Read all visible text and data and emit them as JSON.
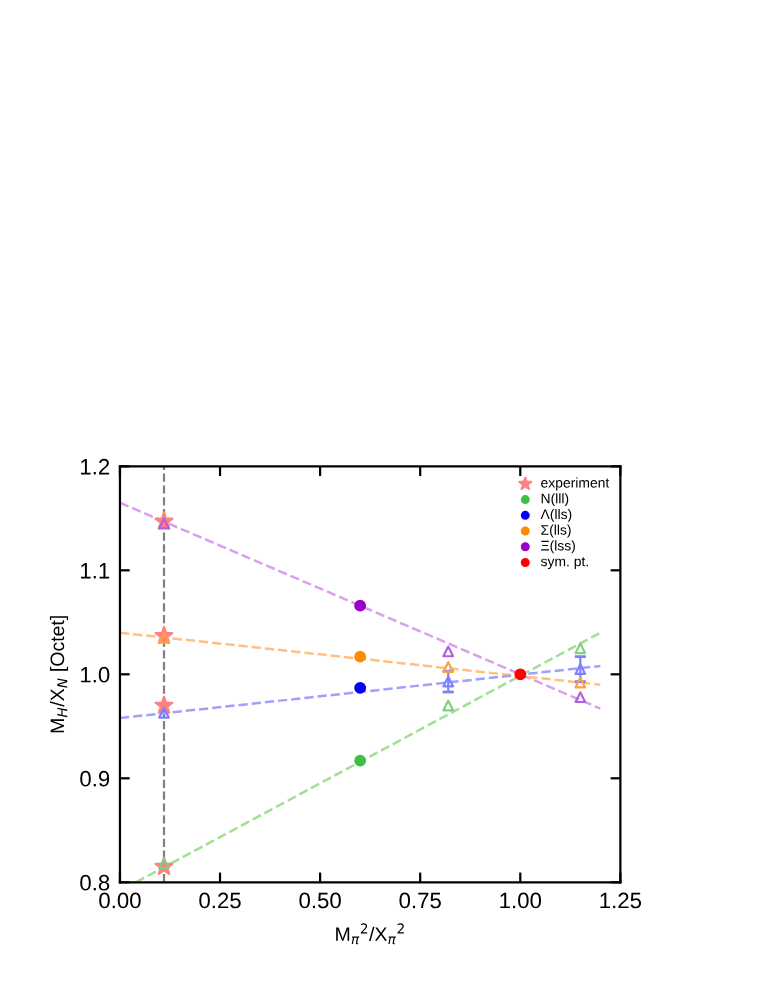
{
  "chart_data": {
    "type": "scatter",
    "xlabel": "M$_{π}$$^{2}$/X$_{π}$$^{2}$",
    "ylabel": "M$_{H}$/X$_{N}$ [Octet]",
    "xlim": [
      0,
      1.25
    ],
    "xticks": [
      {
        "value": 0,
        "label": "0.00"
      },
      0.25,
      {
        "value": 0.5,
        "label": "0.50"
      },
      0.75,
      {
        "value": 1,
        "label": "1.00"
      },
      1.25
    ],
    "ylim": [
      0.8,
      1.2
    ],
    "yticks": [
      0.8,
      0.9,
      {
        "value": 1,
        "label": "1.0"
      },
      1.1,
      1.2
    ],
    "grid": false,
    "legend": "top right",
    "ref_lines": [
      {
        "axis": "x",
        "value": 0.11,
        "color": "#808080",
        "line_style": "dashed"
      }
    ],
    "series": [
      {
        "type": "line",
        "color": "#d9a0f0",
        "line_style": "dashed",
        "marker": "none",
        "x": [
          0,
          1.2
        ],
        "values": [
          1.165,
          0.967
        ]
      },
      {
        "type": "line",
        "color": "#ffc080",
        "line_style": "dashed",
        "marker": "none",
        "x": [
          0,
          1.2
        ],
        "values": [
          1.04,
          0.99
        ]
      },
      {
        "type": "line",
        "color": "#a0a0ff",
        "line_style": "dashed",
        "marker": "none",
        "x": [
          0,
          1.2
        ],
        "values": [
          0.958,
          1.008
        ]
      },
      {
        "type": "line",
        "color": "#a0e090",
        "line_style": "dashed",
        "marker": "none",
        "x": [
          0.04,
          1.2
        ],
        "values": [
          0.8,
          1.04
        ]
      },
      {
        "name": "experiment",
        "color": "#ff8080",
        "marker": "star",
        "x": [
          0.11,
          0.11,
          0.11,
          0.11
        ],
        "values": [
          1.147,
          1.037,
          0.97,
          0.815
        ]
      },
      {
        "name": "N(lll)",
        "color": "#40c040",
        "marker": "circle",
        "x": [
          0.6
        ],
        "values": [
          0.917
        ]
      },
      {
        "name": "Λ(lls)",
        "color": "#0000ff",
        "marker": "circle",
        "x": [
          0.6
        ],
        "values": [
          0.987
        ]
      },
      {
        "name": "Σ(lls)",
        "color": "#ff8c00",
        "marker": "circle",
        "x": [
          0.6
        ],
        "values": [
          1.017
        ]
      },
      {
        "name": "Ξ(lss)",
        "color": "#9900cc",
        "marker": "circle",
        "x": [
          0.6
        ],
        "values": [
          1.066
        ]
      },
      {
        "name": "sym. pt.",
        "color": "#ff0000",
        "marker": "circle",
        "x": [
          1.0
        ],
        "values": [
          1.0
        ]
      },
      {
        "color": "#80d080",
        "marker": "triangle",
        "x": [
          0.11,
          0.82,
          1.15
        ],
        "values": [
          0.818,
          0.97,
          1.025
        ]
      },
      {
        "color": "#8080ff",
        "marker": "triangle",
        "x": [
          0.11,
          0.82,
          1.15
        ],
        "values": [
          0.963,
          0.993,
          1.005
        ],
        "errors": [
          null,
          0.01,
          0.012
        ]
      },
      {
        "color": "#ffa040",
        "marker": "triangle",
        "x": [
          0.11,
          0.82,
          1.15
        ],
        "values": [
          1.035,
          1.007,
          0.992
        ]
      },
      {
        "color": "#b060e0",
        "marker": "triangle",
        "x": [
          0.11,
          0.82,
          1.15
        ],
        "values": [
          1.145,
          1.022,
          0.978
        ]
      }
    ]
  }
}
